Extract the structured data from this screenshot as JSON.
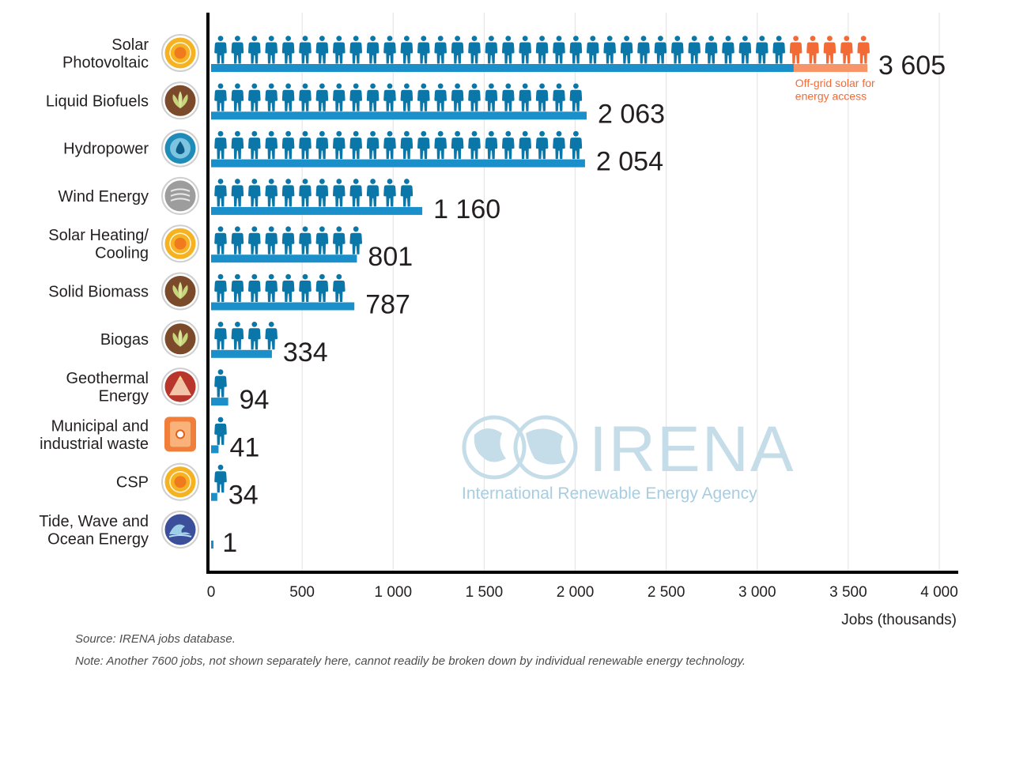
{
  "chart_data": {
    "type": "bar",
    "orientation": "horizontal",
    "categories": [
      [
        "Solar",
        "Photovoltaic"
      ],
      [
        "Liquid Biofuels"
      ],
      [
        "Hydropower"
      ],
      [
        "Wind Energy"
      ],
      [
        "Solar Heating/",
        "Cooling"
      ],
      [
        "Solid Biomass"
      ],
      [
        "Biogas"
      ],
      [
        "Geothermal",
        "Energy"
      ],
      [
        "Municipal and",
        "industrial waste"
      ],
      [
        "CSP"
      ],
      [
        "Tide, Wave and",
        "Ocean Energy"
      ]
    ],
    "values": [
      3605,
      2063,
      2054,
      1160,
      801,
      787,
      334,
      94,
      41,
      34,
      1
    ],
    "value_labels": [
      "3 605",
      "2 063",
      "2 054",
      "1 160",
      "801",
      "787",
      "334",
      "94",
      "41",
      "34",
      "1"
    ],
    "icons": [
      "sun-icon",
      "leaf-icon",
      "water-drop-icon",
      "wind-icon",
      "sun-icon",
      "leaf-icon",
      "leaf-icon",
      "volcano-icon",
      "waste-icon",
      "sun-icon",
      "wave-icon"
    ],
    "highlight_segment": {
      "category_index": 0,
      "start": 3200,
      "end": 3605,
      "label": [
        "Off-grid solar for",
        "energy access"
      ]
    },
    "xlim": [
      0,
      4000
    ],
    "xticks": [
      0,
      500,
      1000,
      1500,
      2000,
      2500,
      3000,
      3500,
      4000
    ],
    "xtick_labels": [
      "0",
      "500",
      "1 000",
      "1 500",
      "2 000",
      "2 500",
      "3 000",
      "3 500",
      "4 000"
    ],
    "xlabel": "Jobs (thousands)",
    "grid": true,
    "colors": {
      "bar": "#1a8fc9",
      "person": "#0b77a8",
      "highlight_bar": "#f79569",
      "highlight_person": "#f26b36",
      "sun": "#f5b324",
      "leaf": "#7b4a2b",
      "water": "#1f8bb8",
      "wind": "#9d9d9d",
      "volcano": "#b8362c",
      "waste": "#f07f3c",
      "wave": "#3b4f9a",
      "watermark": "#c5dde9"
    }
  },
  "watermark": {
    "title": "IRENA",
    "subtitle": "International Renewable Energy Agency"
  },
  "notes": {
    "source": "Source: IRENA jobs database.",
    "note": "Note: Another 7600 jobs, not shown separately here, cannot readily be broken down by individual renewable energy technology."
  }
}
